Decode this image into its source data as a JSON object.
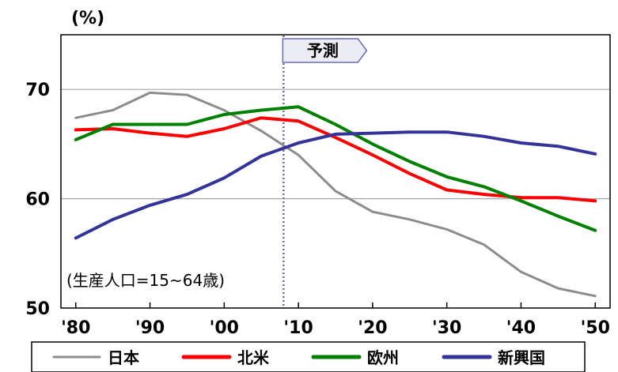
{
  "chart_data": {
    "type": "line",
    "y_unit_label": "(%)",
    "note": "(生産人口=15~64歳)",
    "forecast_label": "予測",
    "forecast_from_year": 2008,
    "ylim": [
      50,
      75
    ],
    "y_ticks": [
      50,
      60,
      70
    ],
    "y_tick_labels": [
      "50",
      "60",
      "70"
    ],
    "x_range": [
      1978,
      2052
    ],
    "x_ticks": [
      1980,
      1990,
      2000,
      2010,
      2020,
      2030,
      2040,
      2050
    ],
    "x_tick_labels": [
      "'80",
      "'90",
      "'00",
      "'10",
      "'20",
      "'30",
      "'40",
      "'50"
    ],
    "grid": "horizontal",
    "legend_position": "bottom",
    "series": [
      {
        "name": "日本",
        "color": "#8c8c8c",
        "points": [
          [
            1980,
            67.4
          ],
          [
            1985,
            68.1
          ],
          [
            1990,
            69.7
          ],
          [
            1995,
            69.5
          ],
          [
            2000,
            68.1
          ],
          [
            2005,
            66.2
          ],
          [
            2010,
            64.0
          ],
          [
            2015,
            60.7
          ],
          [
            2020,
            58.8
          ],
          [
            2025,
            58.1
          ],
          [
            2030,
            57.2
          ],
          [
            2035,
            55.8
          ],
          [
            2040,
            53.3
          ],
          [
            2045,
            51.8
          ],
          [
            2050,
            51.1
          ]
        ]
      },
      {
        "name": "北米",
        "color": "#ff0000",
        "points": [
          [
            1980,
            66.3
          ],
          [
            1985,
            66.4
          ],
          [
            1990,
            66.0
          ],
          [
            1995,
            65.7
          ],
          [
            2000,
            66.4
          ],
          [
            2005,
            67.4
          ],
          [
            2010,
            67.1
          ],
          [
            2015,
            65.6
          ],
          [
            2020,
            64.0
          ],
          [
            2025,
            62.3
          ],
          [
            2030,
            60.8
          ],
          [
            2035,
            60.4
          ],
          [
            2040,
            60.1
          ],
          [
            2045,
            60.1
          ],
          [
            2050,
            59.8
          ]
        ]
      },
      {
        "name": "欧州",
        "color": "#008000",
        "points": [
          [
            1980,
            65.4
          ],
          [
            1985,
            66.8
          ],
          [
            1990,
            66.8
          ],
          [
            1995,
            66.8
          ],
          [
            2000,
            67.7
          ],
          [
            2005,
            68.1
          ],
          [
            2010,
            68.4
          ],
          [
            2015,
            66.8
          ],
          [
            2020,
            65.0
          ],
          [
            2025,
            63.4
          ],
          [
            2030,
            62.0
          ],
          [
            2035,
            61.1
          ],
          [
            2040,
            59.8
          ],
          [
            2045,
            58.4
          ],
          [
            2050,
            57.1
          ]
        ]
      },
      {
        "name": "新興国",
        "color": "#333399",
        "points": [
          [
            1980,
            56.4
          ],
          [
            1985,
            58.1
          ],
          [
            1990,
            59.4
          ],
          [
            1995,
            60.4
          ],
          [
            2000,
            61.9
          ],
          [
            2005,
            63.9
          ],
          [
            2010,
            65.1
          ],
          [
            2015,
            65.9
          ],
          [
            2020,
            66.0
          ],
          [
            2025,
            66.1
          ],
          [
            2030,
            66.1
          ],
          [
            2035,
            65.7
          ],
          [
            2040,
            65.1
          ],
          [
            2045,
            64.8
          ],
          [
            2050,
            64.1
          ]
        ]
      }
    ]
  }
}
